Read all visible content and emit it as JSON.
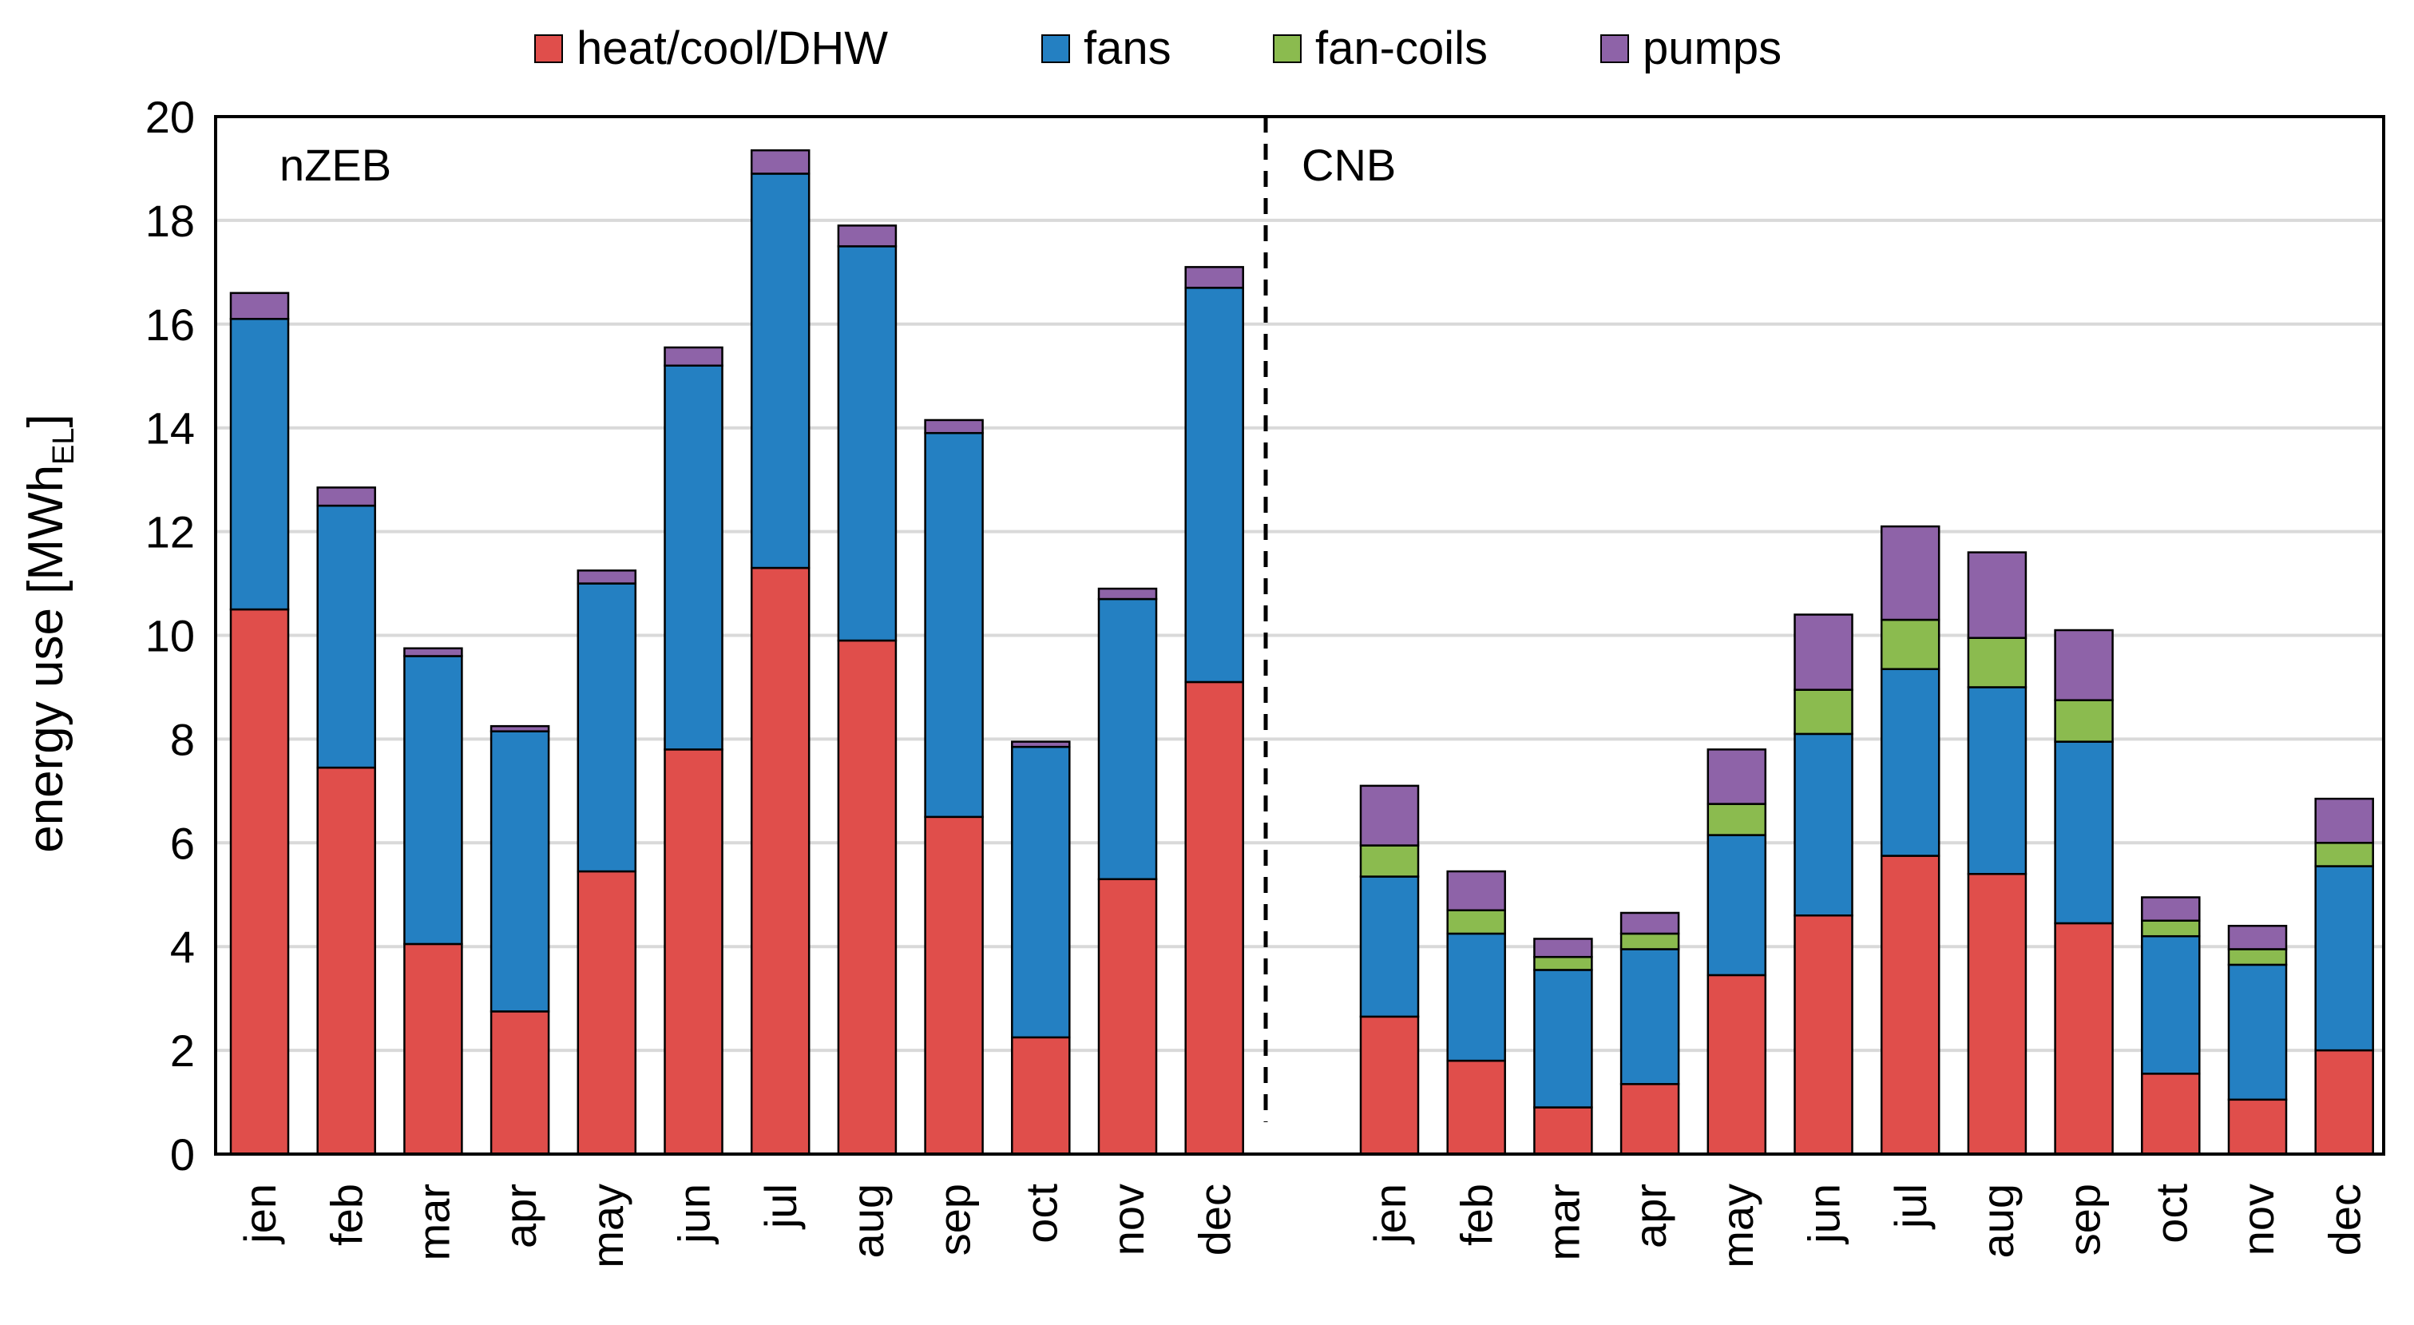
{
  "chart_data": {
    "type": "bar",
    "stacked": true,
    "title": "",
    "xlabel": "",
    "ylabel": "energy use [MWh",
    "ylabel_subscript": "EL",
    "ylabel_suffix": "]",
    "ylim": [
      0,
      20
    ],
    "yticks": [
      "0",
      "2",
      "4",
      "6",
      "8",
      "10",
      "12",
      "14",
      "16",
      "18",
      "20"
    ],
    "grid": true,
    "legend_position": "top-center",
    "legend": [
      "heat/cool/DHW",
      "fans",
      "fan-coils",
      "pumps"
    ],
    "colors": {
      "heat/cool/DHW": "#e04e4b",
      "fans": "#2480c2",
      "fan-coils": "#8bbb4f",
      "pumps": "#8e63a8"
    },
    "groups": [
      {
        "name": "nZEB",
        "categories": [
          "jen",
          "feb",
          "mar",
          "apr",
          "may",
          "jun",
          "jul",
          "aug",
          "sep",
          "oct",
          "nov",
          "dec"
        ],
        "series": [
          {
            "name": "heat/cool/DHW",
            "values": [
              10.5,
              7.45,
              4.05,
              2.75,
              5.45,
              7.8,
              11.3,
              9.9,
              6.5,
              2.25,
              5.3,
              9.1
            ]
          },
          {
            "name": "fans",
            "values": [
              5.6,
              5.05,
              5.55,
              5.4,
              5.55,
              7.4,
              7.6,
              7.6,
              7.4,
              5.6,
              5.4,
              7.6
            ]
          },
          {
            "name": "fan-coils",
            "values": [
              0,
              0,
              0,
              0,
              0,
              0,
              0,
              0,
              0,
              0,
              0,
              0
            ]
          },
          {
            "name": "pumps",
            "values": [
              0.5,
              0.35,
              0.15,
              0.1,
              0.25,
              0.35,
              0.45,
              0.4,
              0.25,
              0.1,
              0.2,
              0.4
            ]
          }
        ]
      },
      {
        "name": "CNB",
        "categories": [
          "jen",
          "feb",
          "mar",
          "apr",
          "may",
          "jun",
          "jul",
          "aug",
          "sep",
          "oct",
          "nov",
          "dec"
        ],
        "series": [
          {
            "name": "heat/cool/DHW",
            "values": [
              2.65,
              1.8,
              0.9,
              1.35,
              3.45,
              4.6,
              5.75,
              5.4,
              4.45,
              1.55,
              1.05,
              2.0
            ]
          },
          {
            "name": "fans",
            "values": [
              2.7,
              2.45,
              2.65,
              2.6,
              2.7,
              3.5,
              3.6,
              3.6,
              3.5,
              2.65,
              2.6,
              3.55
            ]
          },
          {
            "name": "fan-coils",
            "values": [
              0.6,
              0.45,
              0.25,
              0.3,
              0.6,
              0.85,
              0.95,
              0.95,
              0.8,
              0.3,
              0.3,
              0.45
            ]
          },
          {
            "name": "pumps",
            "values": [
              1.15,
              0.75,
              0.35,
              0.4,
              1.05,
              1.45,
              1.8,
              1.65,
              1.35,
              0.45,
              0.45,
              0.85
            ]
          }
        ]
      }
    ]
  }
}
